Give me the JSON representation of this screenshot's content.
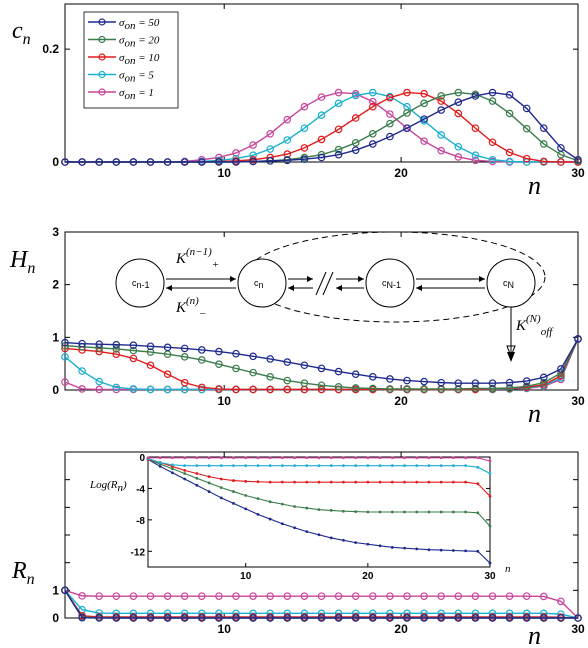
{
  "chart_data": [
    {
      "type": "line",
      "ylabel": "c",
      "ylabel_sub": "n",
      "xlabel": "n",
      "xlim": [
        1,
        30
      ],
      "ylim": [
        0,
        0.28
      ],
      "xticks": [
        10,
        20,
        30
      ],
      "yticks": [
        0,
        0.2
      ],
      "ytick_labels": [
        "0",
        "0.2"
      ],
      "legend_position": "top-left",
      "colors": [
        "#1f2a8f",
        "#3c7d4c",
        "#e01b1b",
        "#1ab0d0",
        "#c8449a"
      ],
      "series": [
        {
          "name_prefix": "σ",
          "name_sub": "on",
          "name_value": " = 50",
          "values": [
            0,
            0,
            0,
            0,
            0,
            0,
            0,
            0,
            0,
            0,
            0,
            0.001,
            0.002,
            0.003,
            0.005,
            0.008,
            0.013,
            0.021,
            0.032,
            0.045,
            0.06,
            0.076,
            0.092,
            0.106,
            0.117,
            0.123,
            0.119,
            0.095,
            0.06,
            0.025,
            0.004
          ]
        },
        {
          "name_prefix": "σ",
          "name_sub": "on",
          "name_value": " = 20",
          "values": [
            0,
            0,
            0,
            0,
            0,
            0,
            0,
            0,
            0,
            0,
            0,
            0.001,
            0.002,
            0.004,
            0.008,
            0.013,
            0.022,
            0.034,
            0.05,
            0.068,
            0.087,
            0.104,
            0.117,
            0.123,
            0.12,
            0.108,
            0.086,
            0.059,
            0.032,
            0.013,
            0.002
          ]
        },
        {
          "name_prefix": "σ",
          "name_sub": "on",
          "name_value": " = 10",
          "values": [
            0,
            0,
            0,
            0,
            0,
            0,
            0,
            0,
            0,
            0.001,
            0.002,
            0.004,
            0.008,
            0.014,
            0.025,
            0.04,
            0.058,
            0.078,
            0.098,
            0.114,
            0.123,
            0.121,
            0.108,
            0.086,
            0.06,
            0.035,
            0.017,
            0.006,
            0.001,
            0,
            0
          ]
        },
        {
          "name_prefix": "σ",
          "name_sub": "on",
          "name_value": " = 5",
          "values": [
            0,
            0,
            0,
            0,
            0,
            0,
            0,
            0,
            0.001,
            0.003,
            0.006,
            0.012,
            0.023,
            0.039,
            0.06,
            0.083,
            0.104,
            0.118,
            0.123,
            0.116,
            0.098,
            0.073,
            0.048,
            0.027,
            0.012,
            0.004,
            0.001,
            0,
            0,
            0,
            0
          ]
        },
        {
          "name_prefix": "σ",
          "name_sub": "on",
          "name_value": " = 1",
          "values": [
            0,
            0,
            0,
            0,
            0,
            0,
            0,
            0.001,
            0.004,
            0.008,
            0.016,
            0.03,
            0.05,
            0.075,
            0.098,
            0.115,
            0.123,
            0.121,
            0.107,
            0.085,
            0.06,
            0.037,
            0.02,
            0.009,
            0.003,
            0.001,
            0,
            0,
            0,
            0,
            0
          ]
        }
      ]
    },
    {
      "type": "line",
      "ylabel": "H",
      "ylabel_sub": "n",
      "xlabel": "n",
      "xlim": [
        1,
        30
      ],
      "ylim": [
        0,
        3
      ],
      "xticks": [
        10,
        20,
        30
      ],
      "yticks": [
        0,
        1,
        2,
        3
      ],
      "ytick_labels": [
        "0",
        "1",
        "2",
        "3"
      ],
      "colors": [
        "#1f2a8f",
        "#3c7d4c",
        "#e01b1b",
        "#1ab0d0",
        "#c8449a"
      ],
      "series": [
        {
          "values": [
            0.9,
            0.88,
            0.87,
            0.86,
            0.85,
            0.83,
            0.81,
            0.79,
            0.76,
            0.73,
            0.69,
            0.64,
            0.59,
            0.53,
            0.47,
            0.41,
            0.35,
            0.3,
            0.25,
            0.21,
            0.18,
            0.16,
            0.14,
            0.13,
            0.13,
            0.13,
            0.14,
            0.17,
            0.24,
            0.4,
            0.97
          ]
        },
        {
          "values": [
            0.84,
            0.82,
            0.8,
            0.78,
            0.75,
            0.72,
            0.68,
            0.63,
            0.57,
            0.49,
            0.41,
            0.33,
            0.25,
            0.18,
            0.13,
            0.09,
            0.06,
            0.04,
            0.03,
            0.02,
            0.02,
            0.02,
            0.02,
            0.02,
            0.03,
            0.03,
            0.04,
            0.07,
            0.14,
            0.32,
            0.97
          ]
        },
        {
          "values": [
            0.79,
            0.76,
            0.73,
            0.68,
            0.6,
            0.47,
            0.3,
            0.14,
            0.05,
            0.02,
            0.01,
            0.01,
            0.01,
            0.01,
            0.01,
            0.01,
            0.01,
            0.01,
            0.01,
            0.01,
            0.01,
            0.01,
            0.01,
            0.01,
            0.01,
            0.02,
            0.03,
            0.05,
            0.1,
            0.27,
            0.97
          ]
        },
        {
          "values": [
            0.63,
            0.36,
            0.16,
            0.05,
            0.02,
            0.01,
            0.01,
            0.01,
            0.01,
            0.01,
            0.01,
            0.01,
            0.01,
            0.01,
            0.01,
            0.01,
            0.01,
            0.01,
            0.01,
            0.01,
            0.01,
            0.01,
            0.01,
            0.01,
            0.01,
            0.01,
            0.02,
            0.04,
            0.08,
            0.23,
            0.97
          ]
        },
        {
          "values": [
            0.15,
            0.02,
            0.01,
            0.01,
            0.01,
            0.01,
            0.01,
            0.01,
            0.01,
            0.01,
            0.01,
            0.01,
            0.01,
            0.01,
            0.01,
            0.01,
            0.01,
            0.01,
            0.01,
            0.01,
            0.01,
            0.01,
            0.01,
            0.01,
            0.01,
            0.01,
            0.02,
            0.03,
            0.07,
            0.2,
            0.97
          ]
        }
      ],
      "diagram": {
        "nodes": [
          "c",
          "c",
          "c",
          "c"
        ],
        "node_subs": [
          "n-1",
          "n",
          "N-1",
          "N"
        ],
        "k_plus": "K",
        "k_plus_sub": "+",
        "k_plus_sup": "(n−1)",
        "k_minus": "K",
        "k_minus_sub": "−",
        "k_minus_sup": "(n)",
        "k_off": "K",
        "k_off_sub": "off",
        "k_off_sup": "(N)"
      }
    },
    {
      "type": "line",
      "ylabel": "R",
      "ylabel_sub": "n",
      "xlabel": "n",
      "xlim": [
        1,
        30
      ],
      "ylim": [
        0,
        6
      ],
      "xticks": [
        10,
        20,
        30
      ],
      "yticks": [
        0,
        1
      ],
      "ytick_labels": [
        "0",
        "1"
      ],
      "colors": [
        "#1f2a8f",
        "#3c7d4c",
        "#e01b1b",
        "#1ab0d0",
        "#c8449a"
      ],
      "series": [
        {
          "values": [
            1,
            0.01,
            0,
            0,
            0,
            0,
            0,
            0,
            0,
            0,
            0,
            0,
            0,
            0,
            0,
            0,
            0,
            0,
            0,
            0,
            0,
            0,
            0,
            0,
            0,
            0,
            0,
            0,
            0,
            0,
            0
          ]
        },
        {
          "values": [
            1,
            0.03,
            0.01,
            0,
            0,
            0,
            0,
            0,
            0,
            0,
            0,
            0,
            0,
            0,
            0,
            0,
            0,
            0,
            0,
            0,
            0,
            0,
            0,
            0,
            0,
            0,
            0,
            0,
            0,
            0,
            0
          ]
        },
        {
          "values": [
            1,
            0.08,
            0.04,
            0.04,
            0.04,
            0.04,
            0.04,
            0.04,
            0.04,
            0.04,
            0.04,
            0.04,
            0.04,
            0.04,
            0.04,
            0.04,
            0.04,
            0.04,
            0.04,
            0.04,
            0.04,
            0.04,
            0.04,
            0.04,
            0.04,
            0.04,
            0.04,
            0.04,
            0.04,
            0.03,
            0
          ]
        },
        {
          "values": [
            1,
            0.3,
            0.18,
            0.17,
            0.17,
            0.17,
            0.17,
            0.17,
            0.17,
            0.17,
            0.17,
            0.17,
            0.17,
            0.17,
            0.17,
            0.17,
            0.17,
            0.17,
            0.17,
            0.17,
            0.17,
            0.17,
            0.17,
            0.17,
            0.17,
            0.17,
            0.17,
            0.17,
            0.17,
            0.14,
            0
          ]
        },
        {
          "values": [
            1,
            0.8,
            0.79,
            0.79,
            0.79,
            0.79,
            0.79,
            0.79,
            0.79,
            0.79,
            0.79,
            0.79,
            0.79,
            0.79,
            0.79,
            0.79,
            0.79,
            0.79,
            0.79,
            0.79,
            0.79,
            0.79,
            0.79,
            0.79,
            0.79,
            0.79,
            0.79,
            0.79,
            0.78,
            0.6,
            0
          ]
        }
      ],
      "inset": {
        "ylabel": "Log(R",
        "ylabel_sub": "n",
        "ylabel_end": ")",
        "xlabel": "n",
        "xlim": [
          2,
          30
        ],
        "ylim": [
          -14,
          0
        ],
        "xticks": [
          10,
          20,
          30
        ],
        "yticks": [
          0,
          -4,
          -8,
          -12
        ],
        "ytick_labels": [
          "0",
          "-4",
          "-8",
          "-12"
        ],
        "series": [
          {
            "values": [
              -0.3,
              -1.2,
              -2.0,
              -2.8,
              -3.6,
              -4.4,
              -5.2,
              -5.9,
              -6.6,
              -7.3,
              -7.9,
              -8.5,
              -9.0,
              -9.5,
              -9.9,
              -10.3,
              -10.6,
              -10.9,
              -11.1,
              -11.3,
              -11.5,
              -11.6,
              -11.7,
              -11.8,
              -11.85,
              -11.9,
              -11.95,
              -12.0,
              -13.5
            ]
          },
          {
            "values": [
              -0.3,
              -0.9,
              -1.5,
              -2.1,
              -2.7,
              -3.3,
              -3.9,
              -4.4,
              -4.9,
              -5.3,
              -5.7,
              -6.0,
              -6.3,
              -6.5,
              -6.7,
              -6.8,
              -6.9,
              -6.95,
              -7.0,
              -7.0,
              -7.0,
              -7.0,
              -7.0,
              -7.0,
              -7.0,
              -7.0,
              -7.0,
              -7.1,
              -8.8
            ]
          },
          {
            "values": [
              -0.3,
              -0.7,
              -1.2,
              -1.7,
              -2.1,
              -2.5,
              -2.8,
              -3.0,
              -3.1,
              -3.15,
              -3.2,
              -3.2,
              -3.2,
              -3.2,
              -3.2,
              -3.2,
              -3.2,
              -3.2,
              -3.2,
              -3.2,
              -3.2,
              -3.2,
              -3.2,
              -3.2,
              -3.2,
              -3.2,
              -3.2,
              -3.4,
              -5.0
            ]
          },
          {
            "values": [
              -0.2,
              -0.7,
              -1.0,
              -1.1,
              -1.1,
              -1.1,
              -1.1,
              -1.1,
              -1.1,
              -1.1,
              -1.1,
              -1.1,
              -1.1,
              -1.1,
              -1.1,
              -1.1,
              -1.1,
              -1.1,
              -1.1,
              -1.1,
              -1.1,
              -1.1,
              -1.1,
              -1.1,
              -1.1,
              -1.1,
              -1.1,
              -1.3,
              -2.1
            ]
          },
          {
            "values": [
              -0.1,
              -0.1,
              -0.1,
              -0.1,
              -0.1,
              -0.1,
              -0.1,
              -0.1,
              -0.1,
              -0.1,
              -0.1,
              -0.1,
              -0.1,
              -0.1,
              -0.1,
              -0.1,
              -0.1,
              -0.1,
              -0.1,
              -0.1,
              -0.1,
              -0.1,
              -0.1,
              -0.1,
              -0.1,
              -0.1,
              -0.1,
              -0.1,
              -0.5
            ]
          }
        ]
      }
    }
  ]
}
